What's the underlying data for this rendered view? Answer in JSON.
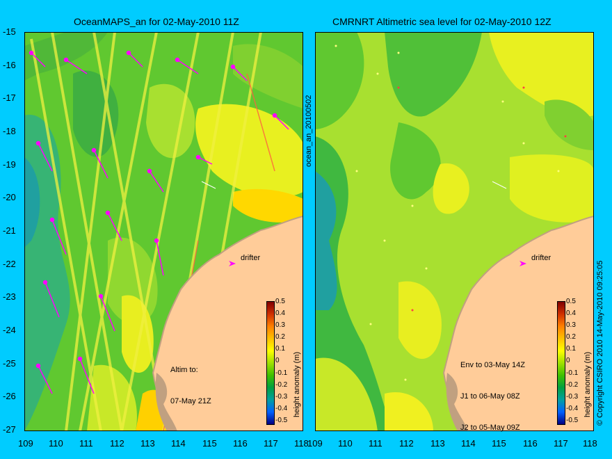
{
  "left_panel": {
    "title": "OceanMAPS_an for 02-May-2010 11Z",
    "annotation_line1": "Altim to:",
    "annotation_line2": "07-May 21Z",
    "drifter_label": "drifter"
  },
  "right_panel": {
    "title": "CMRNRT Altimetric sea level  for 02-May-2010 12Z",
    "annotation_line1": "Env to 03-May 14Z",
    "annotation_line2": "J1 to 06-May 08Z",
    "annotation_line3": "J2 to 05-May 09Z",
    "drifter_label": "drifter"
  },
  "side_label_left": "ocean_an_20100502",
  "side_label_right": "© Copyright CSIRO 2010   14-May-2010 09:25:05",
  "colorbar": {
    "label": "height anomaly (m)",
    "ticks": [
      "0.5",
      "0.4",
      "0.3",
      "0.2",
      "0.1",
      "0",
      "-0.1",
      "-0.2",
      "-0.3",
      "-0.4",
      "-0.5"
    ],
    "colors": [
      "#800000",
      "#d03000",
      "#ff8000",
      "#ffc000",
      "#ffff00",
      "#a0e000",
      "#40c000",
      "#00a040",
      "#00a0a0",
      "#0060ff",
      "#0000a0",
      "#000060"
    ]
  },
  "axes": {
    "lat_ticks": [
      "-15",
      "-16",
      "-17",
      "-18",
      "-19",
      "-20",
      "-21",
      "-22",
      "-23",
      "-24",
      "-25",
      "-26",
      "-27"
    ],
    "lon_ticks": [
      "109",
      "110",
      "111",
      "112",
      "113",
      "114",
      "115",
      "116",
      "117",
      "118"
    ]
  },
  "colors": {
    "background": "#00ccff",
    "land": "#ffcc99",
    "land_edge": "#c0a080",
    "drifter_arrow": "#ff00ff"
  }
}
